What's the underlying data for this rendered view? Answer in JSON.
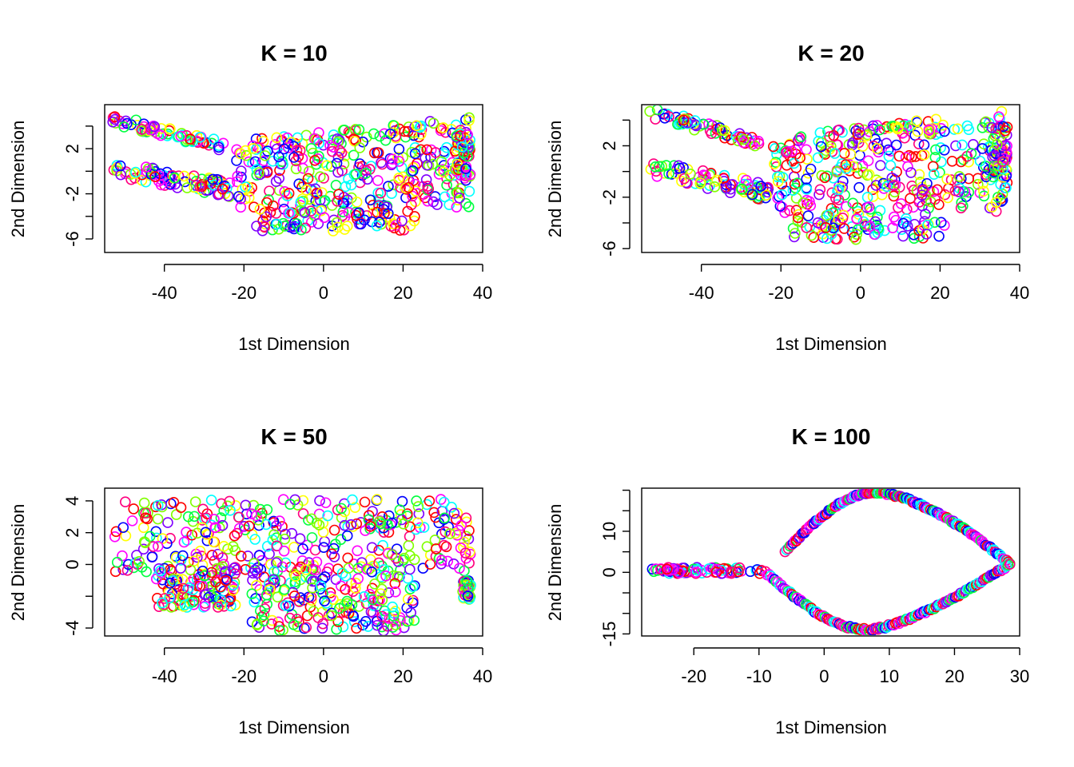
{
  "chart_data": [
    {
      "type": "scatter",
      "title": "K = 10",
      "xlabel": "1st Dimension",
      "ylabel": "2nd Dimension",
      "xlim": [
        -55,
        40
      ],
      "ylim": [
        -7.2,
        5.9
      ],
      "xticks": [
        -40,
        -20,
        0,
        20,
        40
      ],
      "yticks": [
        -6,
        -4,
        -2,
        0,
        2,
        4
      ],
      "ytick_labels": [
        "-6",
        "",
        "-2",
        "",
        "2",
        ""
      ],
      "shape": "band",
      "colors": [
        "#FF0000",
        "#FF0080",
        "#FF00FF",
        "#8000FF",
        "#0000FF",
        "#00FFFF",
        "#00FF40",
        "#80FF00",
        "#FFFF00"
      ]
    },
    {
      "type": "scatter",
      "title": "K = 20",
      "xlabel": "1st Dimension",
      "ylabel": "2nd Dimension",
      "xlim": [
        -55,
        40
      ],
      "ylim": [
        -6.3,
        5.2
      ],
      "xticks": [
        -40,
        -20,
        0,
        20,
        40
      ],
      "yticks": [
        -6,
        -4,
        -2,
        0,
        2,
        4
      ],
      "ytick_labels": [
        "-6",
        "",
        "-2",
        "",
        "2",
        ""
      ],
      "shape": "band",
      "colors": [
        "#FF0000",
        "#FF0080",
        "#FF00FF",
        "#8000FF",
        "#0000FF",
        "#00FFFF",
        "#00FF40",
        "#80FF00",
        "#FFFF00"
      ]
    },
    {
      "type": "scatter",
      "title": "K = 50",
      "xlabel": "1st Dimension",
      "ylabel": "2nd Dimension",
      "xlim": [
        -55,
        40
      ],
      "ylim": [
        -4.5,
        4.8
      ],
      "xticks": [
        -40,
        -20,
        0,
        20,
        40
      ],
      "yticks": [
        -4,
        -2,
        0,
        2,
        4
      ],
      "ytick_labels": [
        "-4",
        "",
        "0",
        "2",
        "4"
      ],
      "shape": "block",
      "colors": [
        "#FF0000",
        "#FF0080",
        "#FF00FF",
        "#8000FF",
        "#0000FF",
        "#00FFFF",
        "#00FF40",
        "#80FF00",
        "#FFFF00"
      ]
    },
    {
      "type": "scatter",
      "title": "K = 100",
      "xlabel": "1st Dimension",
      "ylabel": "2nd Dimension",
      "xlim": [
        -28,
        30
      ],
      "ylim": [
        -15.5,
        20.5
      ],
      "xticks": [
        -20,
        -10,
        0,
        10,
        20,
        30
      ],
      "yticks": [
        -15,
        -10,
        -5,
        0,
        5,
        10,
        15,
        20
      ],
      "ytick_labels": [
        "-15",
        "",
        "",
        "0",
        "",
        "10",
        "",
        ""
      ],
      "shape": "loop",
      "colors": [
        "#FF0000",
        "#FF0080",
        "#FF00FF",
        "#8000FF",
        "#0000FF",
        "#00FFFF",
        "#00FF40"
      ]
    }
  ]
}
